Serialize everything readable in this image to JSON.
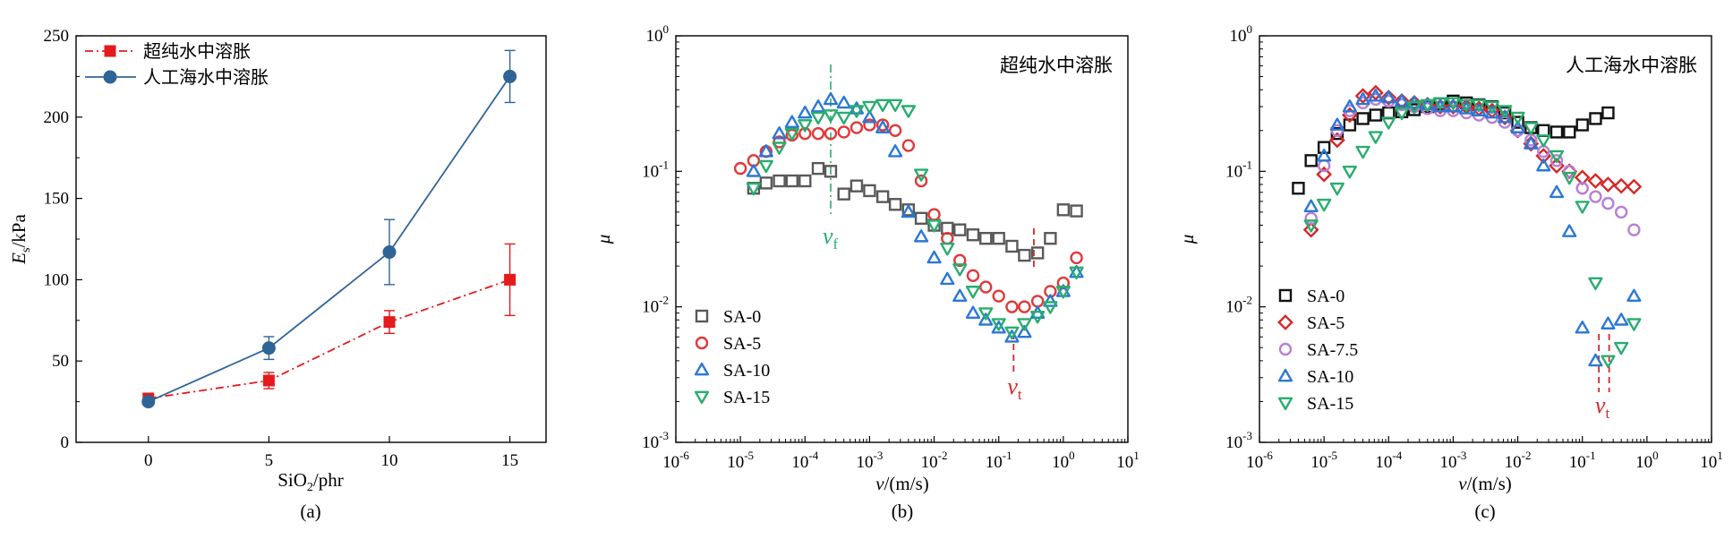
{
  "chart_data": [
    {
      "type": "line",
      "caption": "(a)",
      "xlabel_main": "SiO",
      "xlabel_sub": "2",
      "xlabel_unit": "/phr",
      "ylabel_main": "E",
      "ylabel_sub": "s",
      "ylabel_unit": "/kPa",
      "xlim": [
        -3,
        16.5
      ],
      "ylim": [
        0,
        250
      ],
      "xticks": [
        0,
        5,
        10,
        15
      ],
      "yticks": [
        0,
        50,
        100,
        150,
        200,
        250
      ],
      "series": [
        {
          "name": "超纯水中溶胀",
          "color": "#e41a1c",
          "marker": "square",
          "dash": "dashdot",
          "x": [
            0,
            5,
            10,
            15
          ],
          "y": [
            27,
            38,
            74,
            100
          ],
          "err": [
            3,
            5,
            7,
            22
          ]
        },
        {
          "name": "人工海水中溶胀",
          "color": "#2f6497",
          "marker": "circle",
          "dash": "solid",
          "x": [
            0,
            5,
            10,
            15
          ],
          "y": [
            25,
            58,
            117,
            225
          ],
          "err": [
            2,
            7,
            20,
            16
          ]
        }
      ],
      "legend_position": "top-left"
    },
    {
      "type": "scatter",
      "caption": "(b)",
      "inset_text": "超纯水中溶胀",
      "xlabel_main": "v",
      "xlabel_unit": "/(m/s)",
      "ylabel": "μ",
      "xscale": "log",
      "yscale": "log",
      "xlim": [
        1e-06,
        10
      ],
      "ylim": [
        0.001,
        1
      ],
      "xtick_exps": [
        -6,
        -5,
        -4,
        -3,
        -2,
        -1,
        0,
        1
      ],
      "ytick_exps": [
        -3,
        -2,
        -1,
        0
      ],
      "series": [
        {
          "name": "SA-0",
          "color": "#595959",
          "marker": "square",
          "x": [
            1.6e-05,
            2.5e-05,
            4e-05,
            6.3e-05,
            0.0001,
            0.00016,
            0.00025,
            0.0004,
            0.00063,
            0.001,
            0.0016,
            0.0025,
            0.004,
            0.0063,
            0.01,
            0.016,
            0.025,
            0.04,
            0.063,
            0.1,
            0.16,
            0.25,
            0.4,
            0.63,
            1.0,
            1.6
          ],
          "y": [
            0.075,
            0.082,
            0.085,
            0.085,
            0.085,
            0.105,
            0.1,
            0.068,
            0.078,
            0.072,
            0.065,
            0.057,
            0.052,
            0.045,
            0.04,
            0.038,
            0.037,
            0.034,
            0.032,
            0.032,
            0.028,
            0.024,
            0.025,
            0.032,
            0.052,
            0.051
          ]
        },
        {
          "name": "SA-5",
          "color": "#e0393b",
          "marker": "circle",
          "x": [
            1e-05,
            1.6e-05,
            2.5e-05,
            4e-05,
            6.3e-05,
            0.0001,
            0.00016,
            0.00025,
            0.0004,
            0.00063,
            0.001,
            0.0016,
            0.0025,
            0.004,
            0.0063,
            0.01,
            0.016,
            0.025,
            0.04,
            0.063,
            0.1,
            0.16,
            0.25,
            0.4,
            0.63,
            1.0,
            1.6
          ],
          "y": [
            0.105,
            0.12,
            0.14,
            0.165,
            0.185,
            0.19,
            0.19,
            0.19,
            0.195,
            0.21,
            0.22,
            0.22,
            0.2,
            0.155,
            0.085,
            0.048,
            0.032,
            0.022,
            0.017,
            0.014,
            0.012,
            0.01,
            0.01,
            0.011,
            0.013,
            0.015,
            0.023
          ]
        },
        {
          "name": "SA-10",
          "color": "#2a78d6",
          "marker": "triangle-up",
          "x": [
            1.6e-05,
            2.5e-05,
            4e-05,
            6.3e-05,
            0.0001,
            0.00016,
            0.00025,
            0.0004,
            0.00063,
            0.001,
            0.0016,
            0.0025,
            0.004,
            0.0063,
            0.01,
            0.016,
            0.025,
            0.04,
            0.063,
            0.1,
            0.16,
            0.25,
            0.4,
            0.63,
            1.0,
            1.6
          ],
          "y": [
            0.1,
            0.14,
            0.19,
            0.23,
            0.27,
            0.3,
            0.34,
            0.32,
            0.29,
            0.25,
            0.21,
            0.14,
            0.05,
            0.033,
            0.023,
            0.016,
            0.012,
            0.009,
            0.008,
            0.007,
            0.006,
            0.0065,
            0.009,
            0.011,
            0.013,
            0.018
          ]
        },
        {
          "name": "SA-15",
          "color": "#28ad6f",
          "marker": "triangle-down",
          "x": [
            1.6e-05,
            2.5e-05,
            4e-05,
            6.3e-05,
            0.0001,
            0.00016,
            0.00025,
            0.0004,
            0.00063,
            0.001,
            0.0016,
            0.0025,
            0.004,
            0.0063,
            0.01,
            0.016,
            0.025,
            0.04,
            0.063,
            0.1,
            0.16,
            0.25,
            0.4,
            0.63,
            1.0,
            1.6
          ],
          "y": [
            0.075,
            0.11,
            0.15,
            0.19,
            0.22,
            0.25,
            0.26,
            0.25,
            0.28,
            0.3,
            0.31,
            0.31,
            0.28,
            0.095,
            0.04,
            0.027,
            0.019,
            0.013,
            0.009,
            0.0075,
            0.0065,
            0.0075,
            0.0085,
            0.01,
            0.013,
            0.018
          ]
        }
      ],
      "annotations": [
        {
          "label": "v",
          "sub": "f",
          "x": 0.00025,
          "color": "#28ad6f",
          "dash": "dashdot"
        },
        {
          "label": "v",
          "sub": "t",
          "x": 0.17,
          "color": "#d62728",
          "dash": "dashed"
        }
      ],
      "legend_position": "bottom-left"
    },
    {
      "type": "scatter",
      "caption": "(c)",
      "inset_text": "人工海水中溶胀",
      "xlabel_main": "v",
      "xlabel_unit": "/(m/s)",
      "ylabel": "μ",
      "xscale": "log",
      "yscale": "log",
      "xlim": [
        1e-06,
        10
      ],
      "ylim": [
        0.001,
        1
      ],
      "xtick_exps": [
        -6,
        -5,
        -4,
        -3,
        -2,
        -1,
        0,
        1
      ],
      "ytick_exps": [
        -3,
        -2,
        -1,
        0
      ],
      "series": [
        {
          "name": "SA-0",
          "color": "#111111",
          "marker": "square",
          "x": [
            4e-06,
            6.3e-06,
            1e-05,
            1.6e-05,
            2.5e-05,
            4e-05,
            6.3e-05,
            0.0001,
            0.00016,
            0.00025,
            0.0004,
            0.00063,
            0.001,
            0.0016,
            0.0025,
            0.004,
            0.0063,
            0.01,
            0.016,
            0.025,
            0.04,
            0.063,
            0.1,
            0.16,
            0.25
          ],
          "y": [
            0.075,
            0.12,
            0.15,
            0.19,
            0.22,
            0.245,
            0.26,
            0.27,
            0.275,
            0.285,
            0.3,
            0.315,
            0.33,
            0.32,
            0.31,
            0.3,
            0.27,
            0.23,
            0.21,
            0.2,
            0.195,
            0.195,
            0.22,
            0.245,
            0.27
          ]
        },
        {
          "name": "SA-5",
          "color": "#d62728",
          "marker": "diamond",
          "x": [
            6.3e-06,
            1e-05,
            1.6e-05,
            2.5e-05,
            4e-05,
            6.3e-05,
            0.0001,
            0.00016,
            0.00025,
            0.0004,
            0.00063,
            0.001,
            0.0016,
            0.0025,
            0.004,
            0.0063,
            0.01,
            0.016,
            0.025,
            0.04,
            0.063,
            0.1,
            0.16,
            0.25,
            0.4,
            0.63
          ],
          "y": [
            0.037,
            0.095,
            0.17,
            0.26,
            0.36,
            0.38,
            0.35,
            0.33,
            0.32,
            0.31,
            0.3,
            0.3,
            0.3,
            0.29,
            0.28,
            0.25,
            0.2,
            0.16,
            0.13,
            0.11,
            0.1,
            0.09,
            0.085,
            0.08,
            0.078,
            0.077
          ]
        },
        {
          "name": "SA-7.5",
          "color": "#b77fd6",
          "marker": "circle",
          "x": [
            6.3e-06,
            1e-05,
            1.6e-05,
            2.5e-05,
            4e-05,
            6.3e-05,
            0.0001,
            0.00016,
            0.00025,
            0.0004,
            0.00063,
            0.001,
            0.0016,
            0.0025,
            0.004,
            0.0063,
            0.01,
            0.016,
            0.025,
            0.04,
            0.063,
            0.1,
            0.16,
            0.25,
            0.4,
            0.63
          ],
          "y": [
            0.045,
            0.11,
            0.2,
            0.28,
            0.32,
            0.34,
            0.33,
            0.31,
            0.3,
            0.29,
            0.28,
            0.28,
            0.27,
            0.26,
            0.25,
            0.23,
            0.2,
            0.17,
            0.14,
            0.12,
            0.1,
            0.075,
            0.065,
            0.058,
            0.05,
            0.037
          ]
        },
        {
          "name": "SA-10",
          "color": "#2a78d6",
          "marker": "triangle-up",
          "x": [
            6.3e-06,
            1e-05,
            1.6e-05,
            2.5e-05,
            4e-05,
            6.3e-05,
            0.0001,
            0.00016,
            0.00025,
            0.0004,
            0.00063,
            0.001,
            0.0016,
            0.0025,
            0.004,
            0.0063,
            0.01,
            0.016,
            0.025,
            0.04,
            0.063,
            0.1,
            0.16,
            0.25,
            0.4,
            0.63
          ],
          "y": [
            0.055,
            0.13,
            0.22,
            0.3,
            0.34,
            0.36,
            0.35,
            0.33,
            0.32,
            0.31,
            0.3,
            0.3,
            0.29,
            0.28,
            0.27,
            0.25,
            0.21,
            0.16,
            0.11,
            0.07,
            0.036,
            0.007,
            0.004,
            0.0075,
            0.008,
            0.012
          ]
        },
        {
          "name": "SA-15",
          "color": "#28ad6f",
          "marker": "triangle-down",
          "x": [
            6.3e-06,
            1e-05,
            1.6e-05,
            2.5e-05,
            4e-05,
            6.3e-05,
            0.0001,
            0.00016,
            0.00025,
            0.0004,
            0.00063,
            0.001,
            0.0016,
            0.0025,
            0.004,
            0.0063,
            0.01,
            0.016,
            0.025,
            0.04,
            0.063,
            0.1,
            0.16,
            0.25,
            0.4,
            0.63
          ],
          "y": [
            0.04,
            0.057,
            0.075,
            0.1,
            0.14,
            0.18,
            0.23,
            0.27,
            0.3,
            0.31,
            0.32,
            0.32,
            0.31,
            0.31,
            0.3,
            0.28,
            0.25,
            0.21,
            0.17,
            0.13,
            0.09,
            0.055,
            0.015,
            0.004,
            0.005,
            0.0075
          ]
        }
      ],
      "annotations": [
        {
          "label": "v",
          "sub": "t",
          "x1": 0.18,
          "x2": 0.26,
          "color": "#d62728",
          "dash": "dashed"
        }
      ],
      "legend_position": "bottom-left"
    }
  ]
}
